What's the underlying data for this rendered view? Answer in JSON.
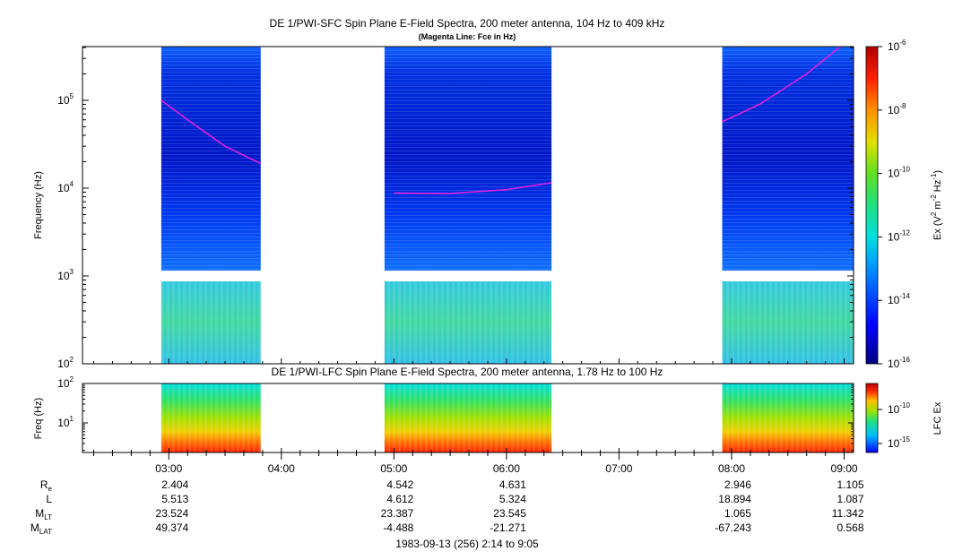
{
  "chart_data": [
    {
      "type": "heatmap",
      "title": "DE 1/PWI-SFC  Spin Plane E-Field Spectra, 200 meter antenna, 104 Hz to 409 kHz",
      "subtitle": "(Magenta Line: Fce in Hz)",
      "ylabel": "Frequency (Hz)",
      "yscale": "log",
      "ylim": [
        100,
        409000
      ],
      "yticks": [
        {
          "exp": "2",
          "value": 100
        },
        {
          "exp": "3",
          "value": 1000
        },
        {
          "exp": "4",
          "value": 10000
        },
        {
          "exp": "5",
          "value": 100000
        }
      ],
      "colorbar": {
        "label_parts": [
          "Ex (V",
          "2",
          " m",
          "-2",
          " Hz",
          "-1",
          ")"
        ],
        "scale": "log",
        "range": [
          1e-16,
          1e-06
        ],
        "ticks": [
          {
            "exp": "-6",
            "value": 1e-06
          },
          {
            "exp": "-8",
            "value": 1e-08
          },
          {
            "exp": "-10",
            "value": 1e-10
          },
          {
            "exp": "-12",
            "value": 1e-12
          },
          {
            "exp": "-14",
            "value": 1e-14
          },
          {
            "exp": "-16",
            "value": 1e-16
          }
        ]
      },
      "data_segments": [
        {
          "start": "02:56",
          "end": "03:49"
        },
        {
          "start": "04:55",
          "end": "06:24"
        },
        {
          "start": "07:55",
          "end": "09:05"
        }
      ],
      "series": [
        {
          "name": "Fce",
          "color": "#e020e0",
          "segments": [
            {
              "points": [
                [
                  "02:56",
                  100000
                ],
                [
                  "03:10",
                  60000
                ],
                [
                  "03:30",
                  30000
                ],
                [
                  "03:49",
                  19000
                ]
              ]
            },
            {
              "points": [
                [
                  "05:00",
                  8800
                ],
                [
                  "05:30",
                  8700
                ],
                [
                  "06:00",
                  9600
                ],
                [
                  "06:24",
                  11500
                ]
              ]
            },
            {
              "points": [
                [
                  "07:55",
                  57000
                ],
                [
                  "08:15",
                  90000
                ],
                [
                  "08:40",
                  200000
                ],
                [
                  "08:58",
                  409000
                ]
              ]
            }
          ]
        }
      ]
    },
    {
      "type": "heatmap",
      "title": "DE 1/PWI-LFC  Spin Plane E-Field Spectra, 200 meter antenna, 1.78 Hz to 100 Hz",
      "ylabel": "Freq (Hz)",
      "yscale": "log",
      "ylim": [
        1.78,
        100
      ],
      "yticks": [
        {
          "exp": "1",
          "value": 10
        },
        {
          "exp": "2",
          "value": 100
        }
      ],
      "colorbar": {
        "label": "LFC Ex",
        "scale": "log",
        "ticks": [
          {
            "exp": "-10",
            "value": 1e-10
          },
          {
            "exp": "-15",
            "value": 1e-15
          }
        ]
      },
      "data_segments": [
        {
          "start": "02:56",
          "end": "03:49"
        },
        {
          "start": "04:55",
          "end": "06:24"
        },
        {
          "start": "07:55",
          "end": "09:05"
        }
      ]
    }
  ],
  "xaxis": {
    "range": [
      "02:14",
      "09:05"
    ],
    "ticks": [
      "03:00",
      "04:00",
      "05:00",
      "06:00",
      "07:00",
      "08:00",
      "09:00"
    ]
  },
  "ephemeris": {
    "rows": [
      {
        "label": "R",
        "sub": "e",
        "values": [
          "2.404",
          "",
          "4.542",
          "4.631",
          "",
          "2.946",
          "1.105"
        ]
      },
      {
        "label": "L",
        "sub": "",
        "values": [
          "5.513",
          "",
          "4.612",
          "5.324",
          "",
          "18.894",
          "1.087"
        ]
      },
      {
        "label": "M",
        "sub": "LT",
        "values": [
          "23.524",
          "",
          "23.387",
          "23.545",
          "",
          "1.065",
          "11.342"
        ]
      },
      {
        "label": "M",
        "sub": "LAT",
        "values": [
          "49.374",
          "",
          "-4.488",
          "-21.271",
          "",
          "-67.243",
          "0.568"
        ]
      }
    ]
  },
  "footer": "1983-09-13 (256) 2:14 to 9:05"
}
